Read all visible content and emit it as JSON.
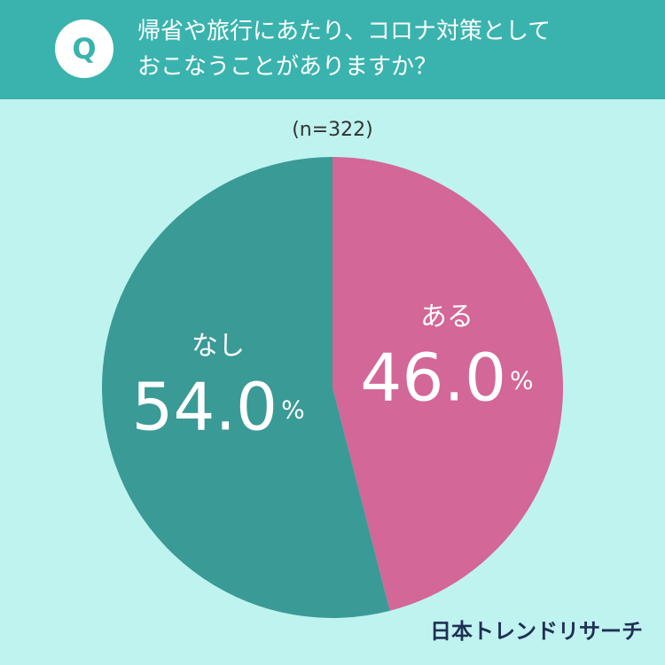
{
  "header": {
    "badge": "Q",
    "title_lines": [
      "帰省や旅行にあたり、コロナ対策として",
      "おこなうことがありますか？"
    ]
  },
  "chart_data": {
    "type": "pie",
    "subtitle": "(n=322)",
    "categories": [
      "ある",
      "なし"
    ],
    "values": [
      46.0,
      54.0
    ],
    "value_labels": [
      "46.0%",
      "54.0%"
    ],
    "colors": [
      "#d36797",
      "#3a9a96"
    ]
  },
  "footer": {
    "brand": "日本トレンドリサーチ"
  }
}
